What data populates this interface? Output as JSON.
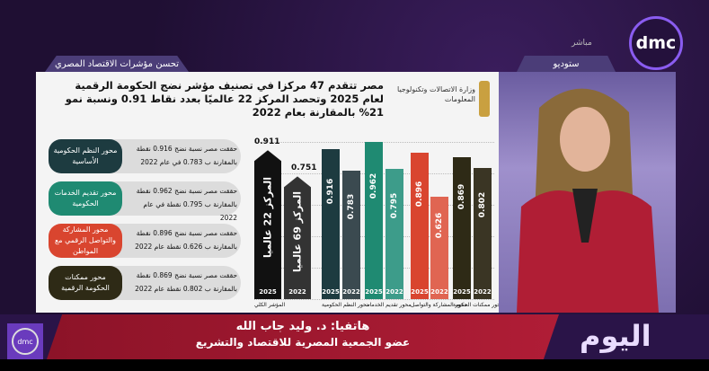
{
  "channel": {
    "logo": "dmc",
    "live": "مباشر",
    "studio_tag": "ستوديو",
    "section_tag": "تحسن مؤشرات الاقتصاد المصري",
    "program": "اليوم"
  },
  "infographic": {
    "title": "مصر تتقدم 47 مركزا في تصنيف مؤشر نضج الحكومة الرقمية لعام 2025 وتحصد المركز 22 عالميًا بعدد نقاط 0.91 ونسبة نمو 21% بالمقارنة بعام 2022",
    "ministry": "وزارة الاتصالات وتكنولوجيا المعلومات",
    "pillars": [
      {
        "label": "محور النظم الحكومية الأساسية",
        "text": "حققت مصر نسبة نضج 0.916 نقطة بالمقارنة ب 0.783 في عام 2022",
        "color": "#1d3b40"
      },
      {
        "label": "محور تقديم الخدمات الحكومية",
        "text": "حققت مصر نسبة نضج 0.962 نقطة بالمقارنة ب 0.795 نقطة في عام 2022",
        "color": "#1f8a72"
      },
      {
        "label": "محور المشاركة والتواصل الرقمي مع المواطن",
        "text": "حققت مصر نسبة نضج 0.896 نقطة بالمقارنة ب 0.626 نقطة عام 2022",
        "color": "#d9452f"
      },
      {
        "label": "محور ممكنات الحكومة الرقمية",
        "text": "حققت مصر نسبة نضج 0.869 نقطة بالمقارنة ب 0.802 نقطة عام 2022",
        "color": "#2e2a16"
      }
    ]
  },
  "chart_data": {
    "type": "bar",
    "categories": [
      "المؤشر الكلي",
      "محور النظم الحكومية",
      "محور تقديم الخدمات",
      "محور المشاركة والتواصل",
      "محور ممكنات الحكومة"
    ],
    "series": [
      {
        "name": "2025",
        "values": [
          0.911,
          0.916,
          0.962,
          0.896,
          0.869
        ]
      },
      {
        "name": "2022",
        "values": [
          0.751,
          0.783,
          0.795,
          0.626,
          0.802
        ]
      }
    ],
    "overall_labels": [
      "المركز 22 عالميا",
      "المركز 69 عالميا"
    ],
    "colors": [
      [
        "#111111",
        "#333333"
      ],
      [
        "#1d3b40",
        "#3b4a50"
      ],
      [
        "#1f8a72",
        "#3d9c8a"
      ],
      [
        "#d9452f",
        "#e06552"
      ],
      [
        "#2e2a16",
        "#3a3524"
      ]
    ],
    "ylim": [
      0,
      1
    ]
  },
  "caption": {
    "line1": "هاتفيا: د. وليد جاب الله",
    "line2": "عضو الجمعية المصرية للاقتصاد والتشريع"
  }
}
